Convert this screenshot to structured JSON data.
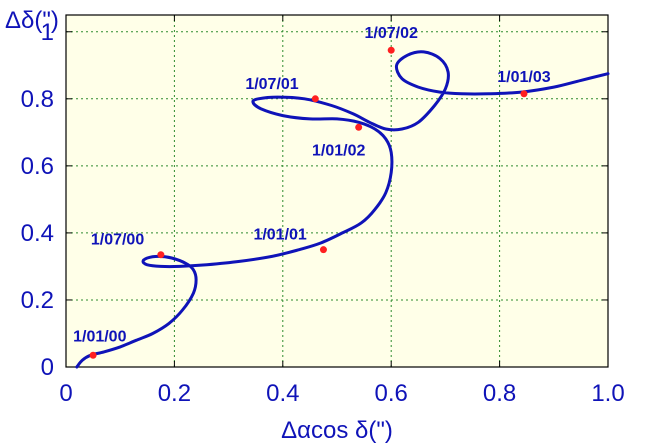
{
  "chart_data": {
    "type": "line",
    "xlabel": "Δαcos δ(\")",
    "ylabel": "Δδ(\")",
    "xlim": [
      0,
      1.0
    ],
    "ylim": [
      0,
      1.05
    ],
    "xticks": [
      0,
      0.2,
      0.4,
      0.6,
      0.8,
      1.0
    ],
    "xtick_labels": [
      "0",
      "0.2",
      "0.4",
      "0.6",
      "0.8",
      "1.0"
    ],
    "yticks": [
      0,
      0.2,
      0.4,
      0.6,
      0.8,
      1.0
    ],
    "ytick_labels": [
      "0",
      "0.2",
      "0.4",
      "0.6",
      "0.8",
      "1"
    ],
    "grid": true,
    "colors": {
      "background": "#ffffe8",
      "curve": "#0f13b8",
      "text": "#0f13b8",
      "marker": "#ff2020",
      "grid": "#2e8b2e",
      "frame": "#000000"
    },
    "series": [
      {
        "x": [
          0.02,
          0.03,
          0.045,
          0.07,
          0.1,
          0.13,
          0.16,
          0.19,
          0.215,
          0.235,
          0.24,
          0.235,
          0.22,
          0.195,
          0.17,
          0.15,
          0.142,
          0.15,
          0.175,
          0.21,
          0.26,
          0.32,
          0.38,
          0.43,
          0.47,
          0.51,
          0.545,
          0.57,
          0.59,
          0.6,
          0.6,
          0.59,
          0.57,
          0.54,
          0.5,
          0.45,
          0.4,
          0.36,
          0.345,
          0.355,
          0.39,
          0.44,
          0.49,
          0.53,
          0.56,
          0.59,
          0.62,
          0.65,
          0.68,
          0.7,
          0.705,
          0.69,
          0.66,
          0.63,
          0.61,
          0.62,
          0.65,
          0.69,
          0.73,
          0.78,
          0.84,
          0.9,
          0.95,
          1.0
        ],
        "y": [
          0.0,
          0.02,
          0.035,
          0.045,
          0.06,
          0.08,
          0.1,
          0.13,
          0.17,
          0.22,
          0.26,
          0.29,
          0.31,
          0.325,
          0.33,
          0.325,
          0.315,
          0.305,
          0.3,
          0.3,
          0.305,
          0.315,
          0.33,
          0.35,
          0.37,
          0.4,
          0.43,
          0.47,
          0.52,
          0.58,
          0.64,
          0.68,
          0.71,
          0.73,
          0.74,
          0.74,
          0.75,
          0.77,
          0.79,
          0.8,
          0.805,
          0.8,
          0.78,
          0.755,
          0.73,
          0.71,
          0.71,
          0.73,
          0.78,
          0.83,
          0.88,
          0.92,
          0.94,
          0.93,
          0.9,
          0.86,
          0.835,
          0.82,
          0.815,
          0.815,
          0.82,
          0.835,
          0.855,
          0.875
        ]
      }
    ],
    "annotations": [
      {
        "label": "1/01/00",
        "x": 0.05,
        "y": 0.035,
        "anchor": "below-left"
      },
      {
        "label": "1/07/00",
        "x": 0.175,
        "y": 0.335,
        "anchor": "above-left"
      },
      {
        "label": "1/01/01",
        "x": 0.475,
        "y": 0.35,
        "anchor": "above-left"
      },
      {
        "label": "1/07/01",
        "x": 0.46,
        "y": 0.8,
        "anchor": "above-left"
      },
      {
        "label": "1/01/02",
        "x": 0.54,
        "y": 0.715,
        "anchor": "below"
      },
      {
        "label": "1/07/02",
        "x": 0.6,
        "y": 0.945,
        "anchor": "above"
      },
      {
        "label": "1/01/03",
        "x": 0.845,
        "y": 0.815,
        "anchor": "above"
      }
    ]
  }
}
